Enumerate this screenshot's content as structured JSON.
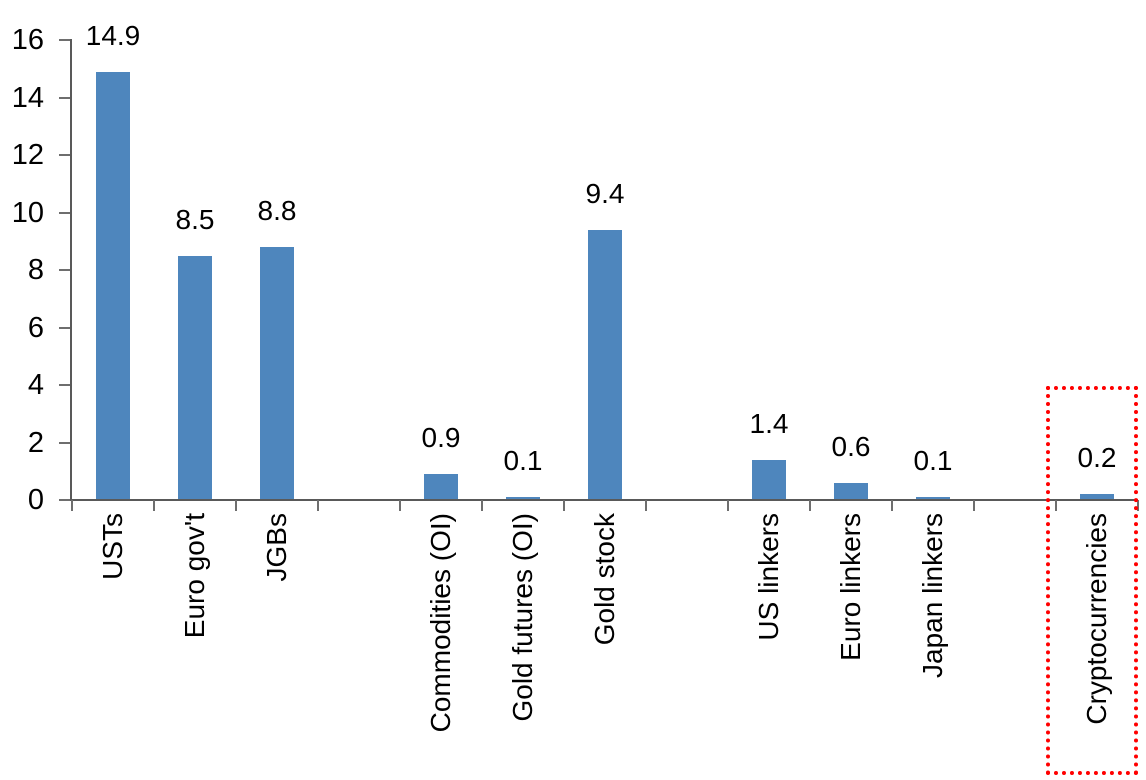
{
  "chart_data": {
    "type": "bar",
    "title": "",
    "xlabel": "",
    "ylabel": "",
    "categories": [
      "USTs",
      "Euro gov't",
      "JGBs",
      "",
      "Commodities (OI)",
      "Gold futures (OI)",
      "Gold stock",
      "",
      "US linkers",
      "Euro linkers",
      "Japan linkers",
      "",
      "Cryptocurrencies"
    ],
    "values": [
      14.9,
      8.5,
      8.8,
      null,
      0.9,
      0.1,
      9.4,
      null,
      1.4,
      0.6,
      0.1,
      null,
      0.2
    ],
    "data_labels": [
      "14.9",
      "8.5",
      "8.8",
      "",
      "0.9",
      "0.1",
      "9.4",
      "",
      "1.4",
      "0.6",
      "0.1",
      "",
      "0.2"
    ],
    "ylim": [
      0,
      16
    ],
    "ytick_interval": 2,
    "ytick_labels": [
      "0",
      "2",
      "4",
      "6",
      "8",
      "10",
      "12",
      "14",
      "16"
    ],
    "grid": false,
    "legend": false,
    "bar_color": "#4E86BD",
    "axis_color": "#595959",
    "text_color": "#000000",
    "highlight": {
      "category": "Cryptocurrencies",
      "style": "dotted-box",
      "color": "#FF0000"
    }
  }
}
